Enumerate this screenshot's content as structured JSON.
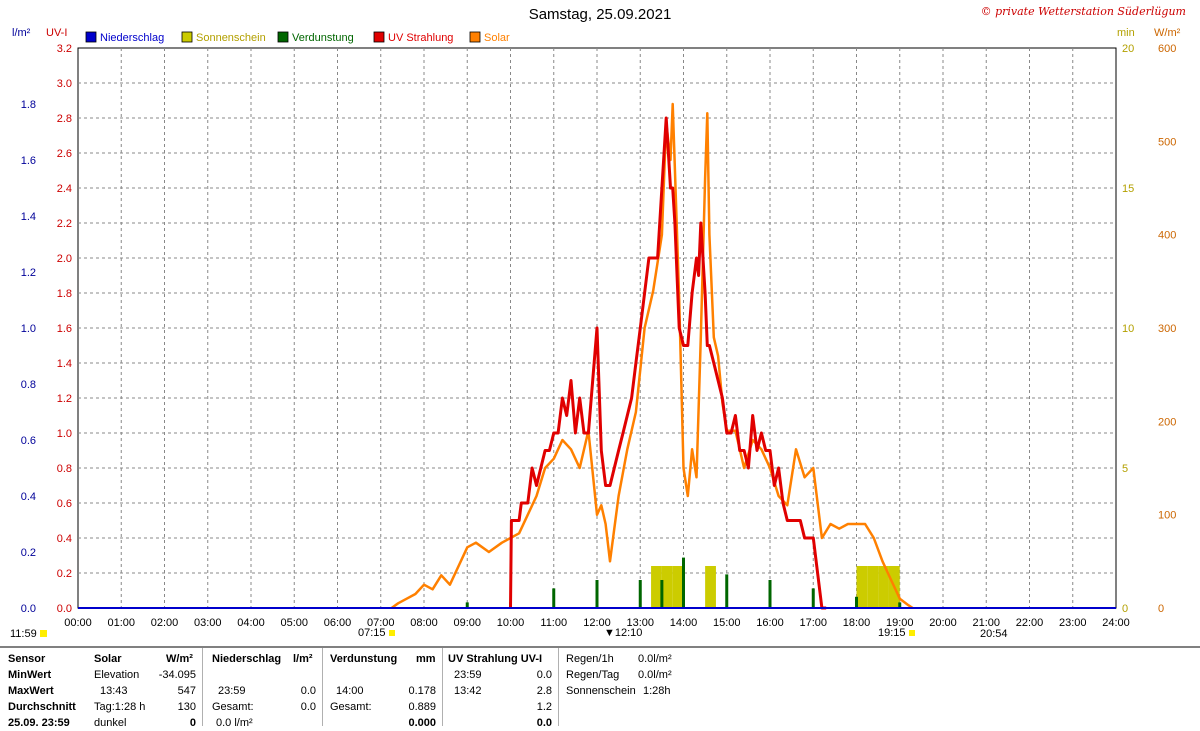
{
  "header": {
    "title": "Samstag, 25.09.2021",
    "copyright": "© private Wetterstation Süderlügum",
    "left_unit_1": "l/m²",
    "left_unit_2": "UV-I",
    "right_unit_1": "min",
    "right_unit_2": "W/m²"
  },
  "legend": [
    {
      "label": "Niederschlag",
      "color": "#0000cc"
    },
    {
      "label": "Sonnenschein",
      "color": "#cccc00"
    },
    {
      "label": "Verdunstung",
      "color": "#006600"
    },
    {
      "label": "UV Strahlung",
      "color": "#e00000"
    },
    {
      "label": "Solar",
      "color": "#ff8000"
    }
  ],
  "markers": {
    "left_time": "11:59",
    "sunrise": "07:15",
    "noon": "12:10",
    "sunset": "19:15",
    "extra": "20:54"
  },
  "chart_data": {
    "type": "line",
    "xlabel": "",
    "x_ticks": [
      "00:00",
      "01:00",
      "02:00",
      "03:00",
      "04:00",
      "05:00",
      "06:00",
      "07:00",
      "08:00",
      "09:00",
      "10:00",
      "11:00",
      "12:00",
      "13:00",
      "14:00",
      "15:00",
      "16:00",
      "17:00",
      "18:00",
      "19:00",
      "20:00",
      "21:00",
      "22:00",
      "23:00",
      "24:00"
    ],
    "xlim": [
      0,
      24
    ],
    "grid": true,
    "axes": {
      "uv": {
        "range": [
          0,
          3.2
        ],
        "ticks": [
          "0.0",
          "0.2",
          "0.4",
          "0.6",
          "0.8",
          "1.0",
          "1.2",
          "1.4",
          "1.6",
          "1.8",
          "2.0",
          "2.2",
          "2.4",
          "2.6",
          "2.8",
          "3.0",
          "3.2"
        ]
      },
      "rain": {
        "range": [
          0,
          2.0
        ],
        "ticks": [
          "0.0",
          "0.2",
          "0.4",
          "0.6",
          "0.8",
          "1.0",
          "1.2",
          "1.4",
          "1.6",
          "1.8"
        ]
      },
      "sunshine": {
        "range": [
          0,
          20
        ],
        "ticks": [
          "0",
          "5",
          "10",
          "15",
          "20"
        ]
      },
      "solar": {
        "range": [
          0,
          600
        ],
        "ticks": [
          "0",
          "100",
          "200",
          "300",
          "400",
          "500",
          "600"
        ]
      }
    },
    "series": [
      {
        "name": "Solar",
        "color": "#ff8000",
        "axis": "solar",
        "x": [
          7.25,
          7.4,
          7.6,
          7.8,
          8.0,
          8.2,
          8.4,
          8.6,
          8.8,
          9.0,
          9.2,
          9.5,
          9.8,
          10.0,
          10.2,
          10.4,
          10.6,
          10.8,
          11.0,
          11.2,
          11.4,
          11.6,
          11.8,
          12.0,
          12.1,
          12.2,
          12.3,
          12.5,
          12.7,
          12.9,
          13.1,
          13.3,
          13.5,
          13.6,
          13.7,
          13.75,
          13.8,
          13.9,
          14.0,
          14.1,
          14.2,
          14.3,
          14.4,
          14.5,
          14.55,
          14.6,
          14.7,
          14.8,
          14.9,
          15.0,
          15.2,
          15.4,
          15.6,
          15.8,
          16.0,
          16.2,
          16.4,
          16.6,
          16.8,
          17.0,
          17.2,
          17.4,
          17.6,
          17.8,
          18.0,
          18.2,
          18.4,
          18.6,
          18.8,
          19.0,
          19.2,
          19.3
        ],
        "y": [
          0,
          5,
          10,
          15,
          25,
          20,
          35,
          25,
          45,
          65,
          70,
          60,
          70,
          75,
          80,
          100,
          120,
          150,
          160,
          180,
          170,
          150,
          190,
          100,
          110,
          90,
          50,
          120,
          170,
          210,
          300,
          340,
          400,
          520,
          480,
          540,
          470,
          330,
          150,
          120,
          170,
          140,
          290,
          460,
          530,
          400,
          290,
          270,
          220,
          190,
          190,
          150,
          180,
          170,
          150,
          120,
          110,
          170,
          140,
          150,
          75,
          90,
          85,
          90,
          90,
          90,
          75,
          50,
          30,
          10,
          3,
          0
        ]
      },
      {
        "name": "UV Strahlung",
        "color": "#e00000",
        "axis": "uv",
        "x": [
          10.0,
          10.02,
          10.05,
          10.2,
          10.25,
          10.3,
          10.4,
          10.5,
          10.6,
          10.7,
          10.8,
          10.9,
          11.0,
          11.1,
          11.2,
          11.3,
          11.4,
          11.5,
          11.6,
          11.7,
          11.8,
          11.9,
          12.0,
          12.1,
          12.2,
          12.3,
          12.4,
          12.5,
          12.6,
          12.7,
          12.8,
          12.9,
          13.0,
          13.1,
          13.2,
          13.3,
          13.4,
          13.5,
          13.6,
          13.65,
          13.7,
          13.75,
          13.8,
          13.9,
          14.0,
          14.1,
          14.2,
          14.3,
          14.35,
          14.4,
          14.5,
          14.55,
          14.6,
          14.7,
          14.8,
          14.9,
          15.0,
          15.1,
          15.2,
          15.3,
          15.4,
          15.5,
          15.6,
          15.7,
          15.8,
          15.9,
          16.0,
          16.1,
          16.2,
          16.3,
          16.4,
          16.5,
          16.6,
          16.7,
          16.8,
          16.9,
          17.0,
          17.1,
          17.2,
          17.25,
          17.3
        ],
        "y": [
          0,
          0.5,
          0.5,
          0.5,
          0.6,
          0.6,
          0.6,
          0.8,
          0.7,
          0.8,
          0.9,
          0.9,
          1.0,
          1.0,
          1.2,
          1.1,
          1.3,
          1.0,
          1.2,
          1.0,
          1.0,
          1.3,
          1.6,
          0.9,
          0.7,
          0.7,
          0.8,
          0.9,
          1.0,
          1.1,
          1.2,
          1.4,
          1.6,
          1.8,
          2.0,
          2.0,
          2.0,
          2.4,
          2.8,
          2.6,
          2.4,
          2.4,
          2.2,
          1.6,
          1.5,
          1.5,
          1.8,
          2.0,
          1.9,
          2.2,
          1.8,
          1.5,
          1.5,
          1.4,
          1.3,
          1.2,
          1.0,
          1.0,
          1.1,
          0.9,
          0.9,
          0.8,
          1.1,
          0.9,
          1.0,
          0.9,
          0.9,
          0.7,
          0.8,
          0.6,
          0.5,
          0.5,
          0.5,
          0.5,
          0.4,
          0.4,
          0.4,
          0.2,
          0.0,
          0,
          0
        ]
      },
      {
        "name": "Verdunstung",
        "color": "#006600",
        "axis": "rain",
        "x": [
          9.0,
          10.0,
          11.0,
          12.0,
          13.0,
          13.5,
          14.0,
          15.0,
          16.0,
          17.0,
          18.0,
          19.0
        ],
        "y": [
          0.02,
          0.02,
          0.07,
          0.1,
          0.1,
          0.1,
          0.18,
          0.12,
          0.1,
          0.07,
          0.04,
          0.02
        ]
      },
      {
        "name": "Sonnenschein",
        "color": "#cccc00",
        "axis": "sunshine",
        "x": [
          13.25,
          13.5,
          13.75,
          14.5,
          18.0,
          18.25,
          18.5,
          18.75
        ],
        "y": [
          1,
          1,
          1,
          1,
          1,
          1,
          1,
          1
        ]
      }
    ]
  },
  "table": {
    "sensor_label": "Sensor",
    "minwert_label": "MinWert",
    "maxwert_label": "MaxWert",
    "durchschnitt_label": "Durchschnitt",
    "date_label": "25.09. 23:59",
    "solar": {
      "title": "Solar",
      "unit": "W/m²",
      "elev_label": "Elevation",
      "elev_value": "-34.095",
      "max_time": "13:43",
      "max_value": "547",
      "avg_label": "Tag:1:28 h",
      "avg_value": "130",
      "now_label": "dunkel",
      "now_value": "0"
    },
    "rain": {
      "title": "Niederschlag",
      "unit": "l/m²",
      "max_time": "23:59",
      "max_value": "0.0",
      "gesamt_label": "Gesamt:",
      "gesamt_value": "0.0",
      "now_value": "0.0 l/m²"
    },
    "evap": {
      "title": "Verdunstung",
      "unit": "mm",
      "max_time": "14:00",
      "max_value": "0.178",
      "gesamt_label": "Gesamt:",
      "gesamt_value": "0.889",
      "now_value": "0.000"
    },
    "uv": {
      "title": "UV Strahlung UV-I",
      "min_time": "23:59",
      "min_value": "0.0",
      "max_time": "13:42",
      "max_value": "2.8",
      "avg_value": "1.2",
      "now_value": "0.0"
    },
    "regen": {
      "per_hour_label": "Regen/1h",
      "per_hour_value": "0.0l/m²",
      "per_day_label": "Regen/Tag",
      "per_day_value": "0.0l/m²",
      "sun_label": "Sonnenschein",
      "sun_value": "1:28h"
    }
  }
}
